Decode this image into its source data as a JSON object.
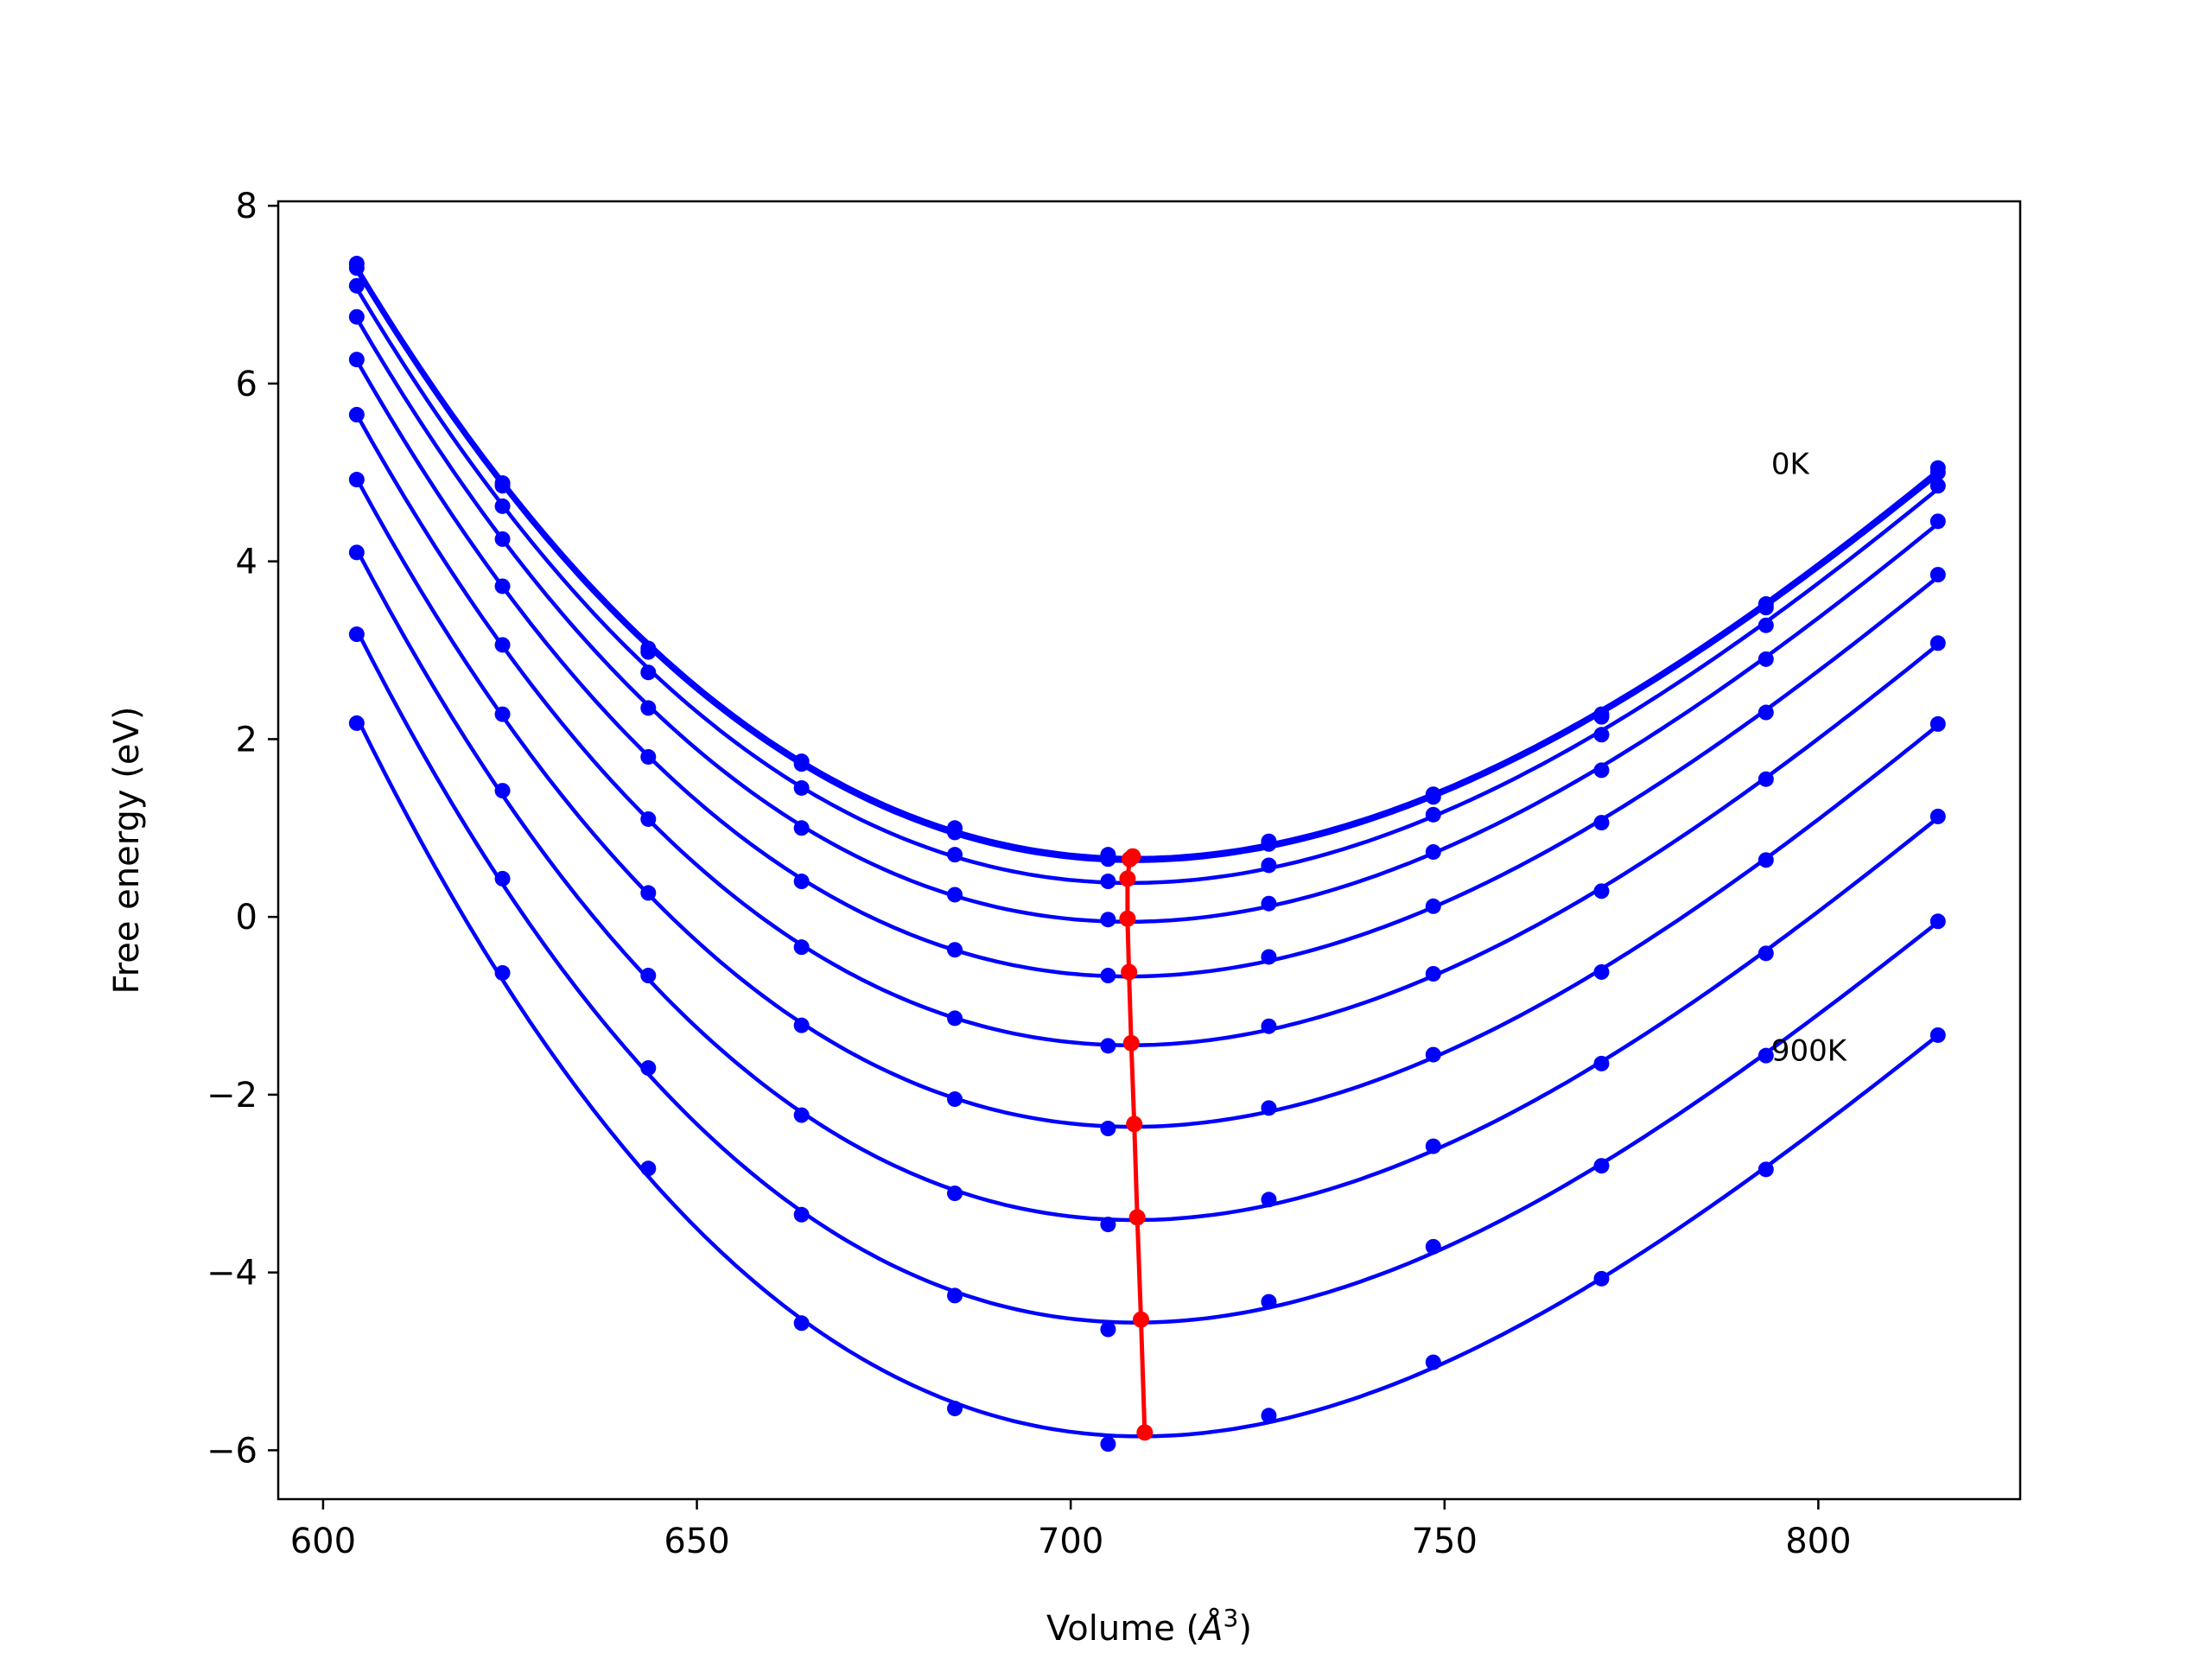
{
  "chart_data": {
    "type": "line",
    "title": "",
    "xlabel": "Volume (",
    "xlabel_sym": "Å",
    "xlabel_sup": "3",
    "xlabel_end": ")",
    "ylabel": "Free energy (eV)",
    "xlim": [
      594,
      827
    ],
    "ylim": [
      -6.55,
      8.05
    ],
    "x_ticks": [
      600,
      650,
      700,
      750,
      800
    ],
    "y_ticks": [
      8,
      6,
      4,
      2,
      0,
      -2,
      -4,
      -6
    ],
    "x_tick_labels": [
      "600",
      "650",
      "700",
      "750",
      "800"
    ],
    "y_tick_labels": [
      "8",
      "6",
      "4",
      "2",
      "0",
      "−2",
      "−4",
      "−6"
    ],
    "grid": false,
    "x": [
      604.5,
      624.0,
      643.5,
      664.0,
      684.5,
      705.0,
      726.5,
      748.5,
      771.0,
      793.0,
      816.0
    ],
    "series": [
      {
        "values": [
          7.35,
          4.88,
          3.02,
          1.75,
          1.0,
          0.7,
          0.85,
          1.38,
          2.28,
          3.52,
          5.05
        ]
      },
      {
        "values": [
          7.3,
          4.85,
          2.98,
          1.72,
          0.95,
          0.65,
          0.82,
          1.35,
          2.25,
          3.48,
          5.0
        ]
      },
      {
        "values": [
          7.1,
          4.62,
          2.75,
          1.45,
          0.7,
          0.4,
          0.58,
          1.15,
          2.05,
          3.28,
          4.85
        ]
      },
      {
        "values": [
          6.75,
          4.25,
          2.35,
          1.0,
          0.25,
          -0.03,
          0.15,
          0.73,
          1.65,
          2.9,
          4.45
        ]
      },
      {
        "values": [
          6.27,
          3.72,
          1.8,
          0.4,
          -0.37,
          -0.66,
          -0.45,
          0.12,
          1.06,
          2.3,
          3.85
        ]
      },
      {
        "values": [
          5.65,
          3.06,
          1.1,
          -0.34,
          -1.14,
          -1.45,
          -1.23,
          -0.64,
          0.29,
          1.55,
          3.08
        ]
      },
      {
        "values": [
          4.92,
          2.28,
          0.27,
          -1.22,
          -2.05,
          -2.38,
          -2.15,
          -1.55,
          -0.62,
          0.64,
          2.17
        ]
      },
      {
        "values": [
          4.1,
          1.42,
          -0.66,
          -2.23,
          -3.11,
          -3.46,
          -3.18,
          -2.58,
          -1.65,
          -0.41,
          1.13
        ]
      },
      {
        "values": [
          3.18,
          0.43,
          -1.7,
          -3.35,
          -4.26,
          -4.64,
          -4.33,
          -3.71,
          -2.8,
          -1.56,
          -0.05
        ]
      },
      {
        "values": [
          2.18,
          -0.63,
          -2.83,
          -4.57,
          -5.53,
          -5.93,
          -5.61,
          -5.01,
          -4.07,
          -2.84,
          -1.33
        ]
      }
    ],
    "minima": {
      "x": [
        708.3,
        707.9,
        707.6,
        707.6,
        707.8,
        708.1,
        708.5,
        708.9,
        709.4,
        709.9
      ],
      "y": [
        0.68,
        0.65,
        0.43,
        -0.02,
        -0.62,
        -1.42,
        -2.33,
        -3.38,
        -4.53,
        -5.8
      ]
    },
    "annotations": [
      {
        "text": "0K",
        "x": 793.0,
        "y": 5.1
      },
      {
        "text": "900K",
        "x": 793.0,
        "y": -1.5
      }
    ],
    "colors": {
      "curves": "#0000ff",
      "minima": "#ff0000",
      "axes": "#000000"
    }
  }
}
